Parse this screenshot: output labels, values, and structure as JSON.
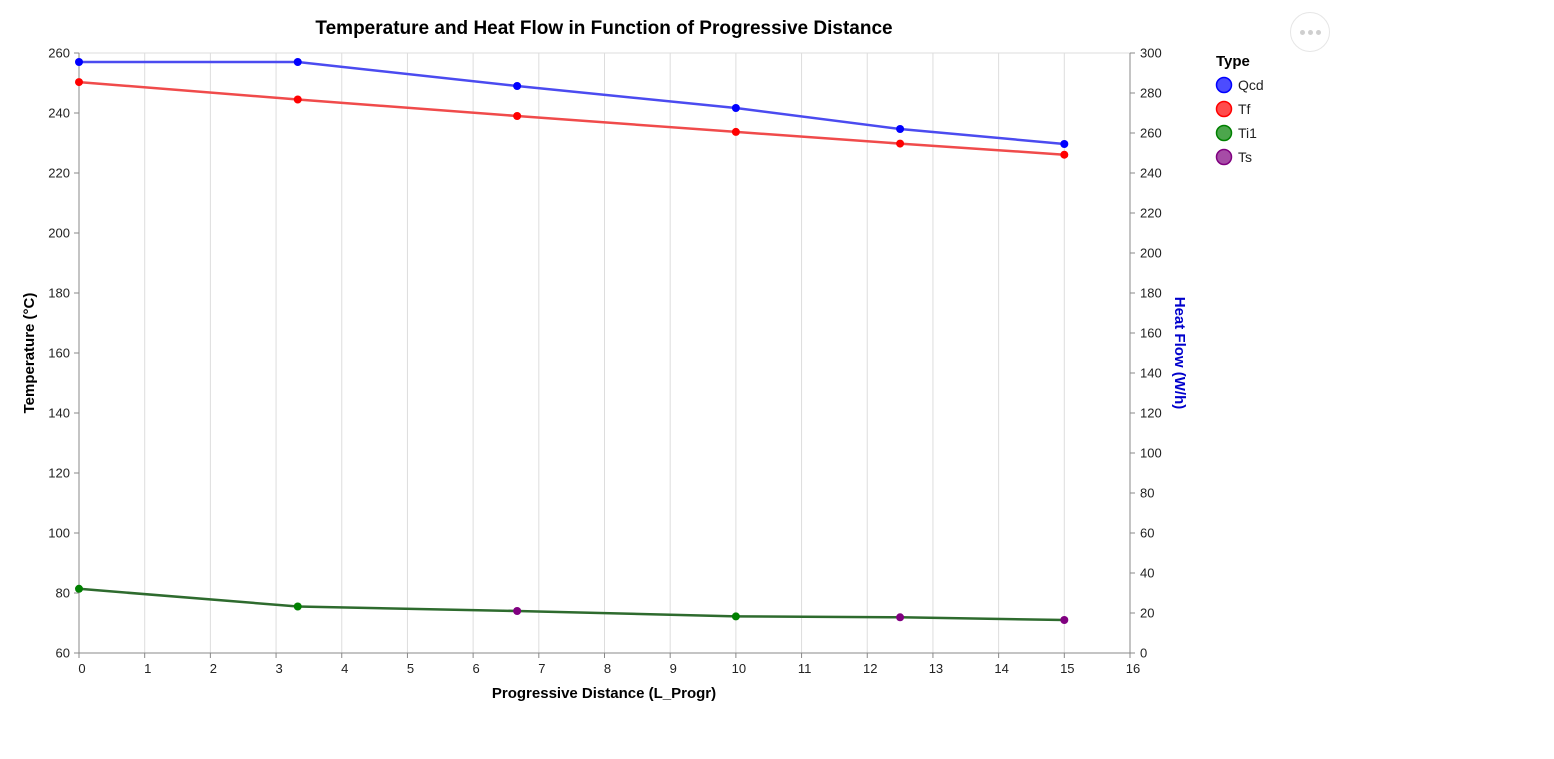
{
  "chart_data": {
    "type": "line",
    "title": "Temperature and Heat Flow in Function of Progressive Distance",
    "xlabel": "Progressive Distance (L_Progr)",
    "ylabel": "Temperature (°C)",
    "y2label": "Heat Flow (W/h)",
    "xlim": [
      0,
      16
    ],
    "ylim": [
      60,
      260
    ],
    "y2lim": [
      0,
      300
    ],
    "x_ticks": [
      0,
      1,
      2,
      3,
      4,
      5,
      6,
      7,
      8,
      9,
      10,
      11,
      12,
      13,
      14,
      15,
      16
    ],
    "y_ticks": [
      60,
      80,
      100,
      120,
      140,
      160,
      180,
      200,
      220,
      240,
      260
    ],
    "y2_ticks": [
      0,
      20,
      40,
      60,
      80,
      100,
      120,
      140,
      160,
      180,
      200,
      220,
      240,
      260,
      280,
      300
    ],
    "grid": "vertical",
    "legend": {
      "title": "Type",
      "position": "top-right",
      "items": [
        {
          "label": "Qcd",
          "color": "#0000ff"
        },
        {
          "label": "Tf",
          "color": "#ff0000"
        },
        {
          "label": "Ti1",
          "color": "#008000"
        },
        {
          "label": "Ts",
          "color": "#800080"
        }
      ]
    },
    "series": [
      {
        "name": "Qcd",
        "axis": "right",
        "color": "#0000ff",
        "x": [
          0,
          3.33,
          6.67,
          10,
          12.5,
          15
        ],
        "y": [
          295.5,
          295.5,
          283.5,
          272.5,
          262,
          254.5
        ]
      },
      {
        "name": "Tf",
        "axis": "left",
        "color": "#ff0000",
        "x": [
          0,
          3.33,
          6.67,
          10,
          12.5,
          15
        ],
        "y": [
          250.3,
          244.5,
          239.0,
          233.7,
          229.8,
          226.1
        ]
      },
      {
        "name": "Ti1",
        "axis": "left",
        "color": "#008000",
        "x": [
          0,
          3.33,
          10
        ],
        "y": [
          81.4,
          75.5,
          72.2
        ]
      },
      {
        "name": "Ts",
        "axis": "left",
        "color": "#800080",
        "x": [
          6.67,
          12.5,
          15
        ],
        "y": [
          74.0,
          71.9,
          71.0
        ]
      }
    ]
  },
  "ui": {
    "menu_button_label": "Actions"
  }
}
